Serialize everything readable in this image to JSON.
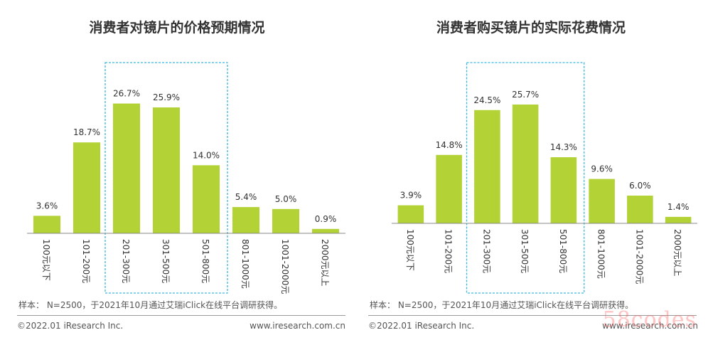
{
  "chart_data": [
    {
      "type": "bar",
      "title": "消费者对镜片的价格预期情况",
      "categories": [
        "100元以下",
        "101-200元",
        "201-300元",
        "301-500元",
        "501-800元",
        "801-1000元",
        "1001-2000元",
        "2000元以上"
      ],
      "values": [
        3.6,
        18.7,
        26.7,
        25.9,
        14.0,
        5.4,
        5.0,
        0.9
      ],
      "value_labels": [
        "3.6%",
        "18.7%",
        "26.7%",
        "25.9%",
        "14.0%",
        "5.4%",
        "5.0%",
        "0.9%"
      ],
      "highlight": {
        "from_index": 2,
        "to_index": 4
      },
      "ylim": [
        0,
        30
      ],
      "xlabel": "",
      "ylabel": "",
      "grid": false,
      "bar_color": "#b2d235",
      "highlight_border_color": "#3bb8e0"
    },
    {
      "type": "bar",
      "title": "消费者购买镜片的实际花费情况",
      "categories": [
        "100元以下",
        "101-200元",
        "201-300元",
        "301-500元",
        "501-800元",
        "801-1000元",
        "1001-2000元",
        "2000元以上"
      ],
      "values": [
        3.9,
        14.8,
        24.5,
        25.7,
        14.3,
        9.6,
        6.0,
        1.4
      ],
      "value_labels": [
        "3.9%",
        "14.8%",
        "24.5%",
        "25.7%",
        "14.3%",
        "9.6%",
        "6.0%",
        "1.4%"
      ],
      "highlight": {
        "from_index": 2,
        "to_index": 4
      },
      "ylim": [
        0,
        30
      ],
      "xlabel": "",
      "ylabel": "",
      "grid": false,
      "bar_color": "#b2d235",
      "highlight_border_color": "#3bb8e0"
    }
  ],
  "notes": {
    "sample_left": "样本： N=2500，于2021年10月通过艾瑞iClick在线平台调研获得。",
    "sample_right": "样本： N=2500，于2021年10月通过艾瑞iClick在线平台调研获得。"
  },
  "footer": {
    "copyright_left": "©2022.01 iResearch Inc.",
    "site_left": "www.iresearch.com.cn",
    "copyright_right": "©2022.01 iResearch Inc.",
    "site_right": "www.iresearch.com.cn"
  },
  "watermark": "58codes"
}
